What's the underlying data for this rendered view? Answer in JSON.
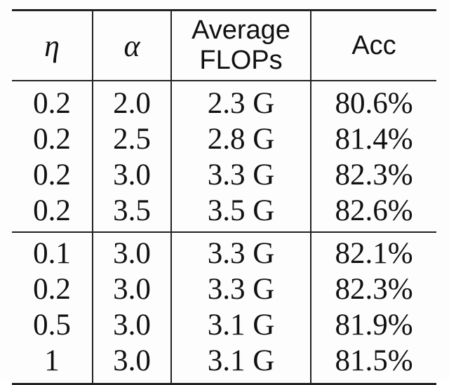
{
  "table": {
    "headers": {
      "eta": "η",
      "alpha": "α",
      "flops_line1": "Average",
      "flops_line2": "FLOPs",
      "acc": "Acc"
    },
    "group1": [
      {
        "eta": "0.2",
        "alpha": "2.0",
        "flops": "2.3 G",
        "acc": "80.6%"
      },
      {
        "eta": "0.2",
        "alpha": "2.5",
        "flops": "2.8 G",
        "acc": "81.4%"
      },
      {
        "eta": "0.2",
        "alpha": "3.0",
        "flops": "3.3 G",
        "acc": "82.3%"
      },
      {
        "eta": "0.2",
        "alpha": "3.5",
        "flops": "3.5 G",
        "acc": "82.6%"
      }
    ],
    "group2": [
      {
        "eta": "0.1",
        "alpha": "3.0",
        "flops": "3.3 G",
        "acc": "82.1%"
      },
      {
        "eta": "0.2",
        "alpha": "3.0",
        "flops": "3.3 G",
        "acc": "82.3%"
      },
      {
        "eta": "0.5",
        "alpha": "3.0",
        "flops": "3.1 G",
        "acc": "81.9%"
      },
      {
        "eta": "1",
        "alpha": "3.0",
        "flops": "3.1 G",
        "acc": "81.5%"
      }
    ]
  }
}
